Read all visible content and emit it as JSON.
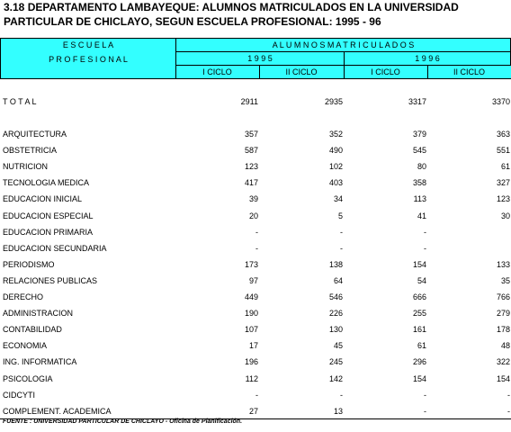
{
  "header": {
    "title_lines": [
      "3.18  DEPARTAMENTO LAMBAYEQUE: ALUMNOS MATRICULADOS EN LA UNIVERSIDAD",
      "PARTICULAR DE CHICLAYO, SEGUN ESCUELA PROFESIONAL: 1995 - 96"
    ]
  },
  "table": {
    "corner": [
      "E S C U E L A",
      "P R O F E S I O N A L"
    ],
    "group": "A L U M N O S     M A T R I C U L A D O S",
    "years": [
      "1 9 9 5",
      "1 9 9 6"
    ],
    "cycles": [
      "I CICLO",
      "II CICLO",
      "I CICLO",
      "II CICLO"
    ],
    "total": {
      "label": "T O T A L",
      "values": [
        2911,
        2935,
        3317,
        3370
      ]
    },
    "rows": [
      {
        "label": "ARQUITECTURA",
        "values": [
          357,
          352,
          379,
          363
        ]
      },
      {
        "label": "OBSTETRICIA",
        "values": [
          587,
          490,
          545,
          551
        ]
      },
      {
        "label": "NUTRICION",
        "values": [
          123,
          102,
          80,
          61
        ]
      },
      {
        "label": "TECNOLOGIA MEDICA",
        "values": [
          417,
          403,
          358,
          327
        ]
      },
      {
        "label": "EDUCACION INICIAL",
        "values": [
          39,
          34,
          113,
          123
        ]
      },
      {
        "label": "EDUCACION ESPECIAL",
        "values": [
          20,
          5,
          41,
          30
        ]
      },
      {
        "label": "EDUCACION PRIMARIA",
        "values": [
          "-",
          "-",
          "-",
          null
        ]
      },
      {
        "label": "EDUCACION SECUNDARIA",
        "values": [
          "-",
          "-",
          "-",
          null
        ]
      },
      {
        "label": "PERIODISMO",
        "values": [
          173,
          138,
          154,
          133
        ]
      },
      {
        "label": "RELACIONES PUBLICAS",
        "values": [
          97,
          64,
          54,
          35
        ]
      },
      {
        "label": "DERECHO",
        "values": [
          449,
          546,
          666,
          766
        ]
      },
      {
        "label": "ADMINISTRACION",
        "values": [
          190,
          226,
          255,
          279
        ]
      },
      {
        "label": "CONTABILIDAD",
        "values": [
          107,
          130,
          161,
          178
        ]
      },
      {
        "label": "ECONOMIA",
        "values": [
          17,
          45,
          61,
          48
        ]
      },
      {
        "label": "ING. INFORMATICA",
        "values": [
          196,
          245,
          296,
          322
        ]
      },
      {
        "label": "PSICOLOGIA",
        "values": [
          112,
          142,
          154,
          154
        ]
      },
      {
        "label": "CIDCYTI",
        "values": [
          "-",
          "-",
          "-",
          "-"
        ]
      },
      {
        "label": "COMPLEMENT. ACADEMICA",
        "values": [
          27,
          13,
          "-",
          "-"
        ]
      }
    ]
  },
  "footer": {
    "source": "FUENTE : UNIVERSIDAD PARTICULAR DE CHICLAYO - Oficina de Planificación."
  }
}
